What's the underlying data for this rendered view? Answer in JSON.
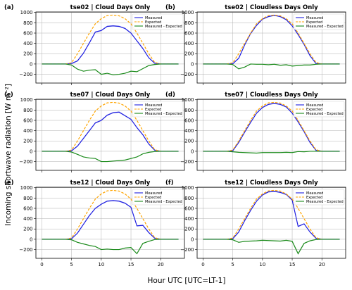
{
  "figure": {
    "ylabel": "Incoming shortwave radiation [W m⁻²]",
    "xlabel": "Hour UTC [UTC=LT-1]",
    "legend_entries": [
      "Measured",
      "Expected",
      "Measured - Expected"
    ],
    "colors": {
      "measured": "#1f1fe0",
      "expected": "#ffa500",
      "difference": "#1a8a1a",
      "band": "#9aa0f0"
    }
  },
  "chart_data": [
    {
      "type": "line",
      "panel": "(a)",
      "title": "tse02 | Cloud Days Only",
      "xlim": [
        -1,
        24
      ],
      "ylim": [
        -370,
        1010
      ],
      "xticks": [
        0,
        5,
        10,
        15,
        20
      ],
      "yticks": [
        -200,
        0,
        200,
        400,
        600,
        800,
        1000
      ],
      "x": [
        0,
        1,
        2,
        3,
        4,
        5,
        6,
        7,
        8,
        9,
        10,
        11,
        12,
        13,
        14,
        15,
        16,
        17,
        18,
        19,
        20,
        21,
        22,
        23
      ],
      "series": [
        {
          "name": "Measured",
          "values": [
            0,
            0,
            0,
            0,
            0,
            10,
            60,
            210,
            410,
            620,
            650,
            730,
            740,
            730,
            690,
            600,
            450,
            300,
            120,
            15,
            0,
            0,
            0,
            0
          ]
        },
        {
          "name": "Expected",
          "values": [
            0,
            0,
            0,
            0,
            0,
            25,
            200,
            400,
            600,
            780,
            880,
            940,
            950,
            935,
            880,
            780,
            600,
            400,
            200,
            30,
            0,
            0,
            0,
            0
          ]
        },
        {
          "name": "Measured - Expected",
          "values": [
            0,
            0,
            0,
            0,
            0,
            -20,
            -100,
            -140,
            -120,
            -110,
            -200,
            -180,
            -210,
            -200,
            -180,
            -140,
            -150,
            -90,
            -30,
            -10,
            0,
            0,
            0,
            0
          ]
        }
      ]
    },
    {
      "type": "line",
      "panel": "(b)",
      "title": "tse02 | Cloudless Days Only",
      "xlim": [
        -1,
        24
      ],
      "ylim": [
        -370,
        1010
      ],
      "xticks": [
        0,
        5,
        10,
        15,
        20
      ],
      "yticks": [
        -200,
        0,
        200,
        400,
        600,
        800,
        1000
      ],
      "x": [
        0,
        1,
        2,
        3,
        4,
        5,
        6,
        7,
        8,
        9,
        10,
        11,
        12,
        13,
        14,
        15,
        16,
        17,
        18,
        19,
        20,
        21,
        22,
        23
      ],
      "series": [
        {
          "name": "Measured",
          "values": [
            0,
            0,
            0,
            0,
            0,
            5,
            110,
            370,
            590,
            750,
            870,
            920,
            945,
            920,
            860,
            740,
            570,
            380,
            160,
            10,
            0,
            0,
            0,
            0
          ]
        },
        {
          "name": "Expected",
          "values": [
            0,
            0,
            0,
            0,
            0,
            25,
            200,
            400,
            600,
            780,
            880,
            940,
            950,
            935,
            880,
            780,
            600,
            400,
            200,
            30,
            0,
            0,
            0,
            0
          ]
        },
        {
          "name": "Measured - Expected",
          "values": [
            0,
            0,
            0,
            0,
            0,
            -10,
            -95,
            -60,
            0,
            -5,
            -5,
            -15,
            -5,
            -25,
            -15,
            -40,
            -30,
            -20,
            -20,
            -5,
            0,
            0,
            0,
            0
          ]
        }
      ]
    },
    {
      "type": "line",
      "panel": "(c)",
      "title": "tse07 | Cloud Days Only",
      "xlim": [
        -1,
        24
      ],
      "ylim": [
        -370,
        1010
      ],
      "xticks": [
        0,
        5,
        10,
        15,
        20
      ],
      "yticks": [
        -200,
        0,
        200,
        400,
        600,
        800,
        1000
      ],
      "x": [
        0,
        1,
        2,
        3,
        4,
        5,
        6,
        7,
        8,
        9,
        10,
        11,
        12,
        13,
        14,
        15,
        16,
        17,
        18,
        19,
        20,
        21,
        22,
        23
      ],
      "series": [
        {
          "name": "Measured",
          "values": [
            0,
            0,
            0,
            0,
            0,
            10,
            100,
            250,
            400,
            550,
            600,
            700,
            750,
            760,
            690,
            620,
            460,
            320,
            140,
            20,
            0,
            0,
            0,
            0
          ]
        },
        {
          "name": "Expected",
          "values": [
            0,
            0,
            0,
            0,
            0,
            25,
            200,
            400,
            600,
            780,
            880,
            940,
            950,
            935,
            880,
            780,
            600,
            400,
            200,
            30,
            0,
            0,
            0,
            0
          ]
        },
        {
          "name": "Measured - Expected",
          "values": [
            0,
            0,
            0,
            0,
            0,
            -15,
            -60,
            -110,
            -130,
            -140,
            -200,
            -200,
            -190,
            -180,
            -170,
            -140,
            -110,
            -50,
            -20,
            -5,
            0,
            0,
            0,
            0
          ]
        }
      ]
    },
    {
      "type": "line",
      "panel": "(d)",
      "title": "tse07 | Cloudless Days Only",
      "xlim": [
        -1,
        24
      ],
      "ylim": [
        -370,
        1010
      ],
      "xticks": [
        0,
        5,
        10,
        15,
        20
      ],
      "yticks": [
        -200,
        0,
        200,
        400,
        600,
        800,
        1000
      ],
      "x": [
        0,
        1,
        2,
        3,
        4,
        5,
        6,
        7,
        8,
        9,
        10,
        11,
        12,
        13,
        14,
        15,
        16,
        17,
        18,
        19,
        20,
        21,
        22,
        23
      ],
      "series": [
        {
          "name": "Measured",
          "values": [
            0,
            0,
            0,
            0,
            0,
            10,
            170,
            370,
            560,
            740,
            850,
            910,
            930,
            910,
            860,
            740,
            570,
            380,
            170,
            20,
            0,
            0,
            0,
            0
          ]
        },
        {
          "name": "Expected",
          "values": [
            0,
            0,
            0,
            0,
            0,
            25,
            200,
            400,
            600,
            780,
            880,
            940,
            950,
            935,
            880,
            780,
            600,
            400,
            200,
            30,
            0,
            0,
            0,
            0
          ]
        },
        {
          "name": "Measured - Expected",
          "values": [
            0,
            0,
            0,
            0,
            0,
            -10,
            -20,
            -25,
            -30,
            -35,
            -25,
            -25,
            -25,
            -25,
            -20,
            -25,
            -5,
            -10,
            0,
            0,
            0,
            0,
            0,
            0
          ]
        }
      ]
    },
    {
      "type": "line",
      "panel": "(e)",
      "title": "tse12 | Cloud Days Only",
      "xlim": [
        -1,
        24
      ],
      "ylim": [
        -370,
        1010
      ],
      "xticks": [
        0,
        5,
        10,
        15,
        20
      ],
      "yticks": [
        -200,
        0,
        200,
        400,
        600,
        800,
        1000
      ],
      "x": [
        0,
        1,
        2,
        3,
        4,
        5,
        6,
        7,
        8,
        9,
        10,
        11,
        12,
        13,
        14,
        15,
        16,
        17,
        18,
        19,
        20,
        21,
        22,
        23
      ],
      "series": [
        {
          "name": "Measured",
          "values": [
            0,
            0,
            0,
            0,
            0,
            10,
            120,
            290,
            460,
            600,
            680,
            740,
            750,
            740,
            700,
            620,
            260,
            270,
            130,
            20,
            0,
            0,
            0,
            0
          ]
        },
        {
          "name": "Expected",
          "values": [
            0,
            0,
            0,
            0,
            0,
            25,
            200,
            400,
            600,
            780,
            880,
            940,
            950,
            935,
            880,
            780,
            600,
            400,
            200,
            30,
            0,
            0,
            0,
            0
          ]
        },
        {
          "name": "Measured - Expected",
          "values": [
            0,
            0,
            0,
            0,
            0,
            -10,
            -60,
            -90,
            -120,
            -140,
            -200,
            -190,
            -200,
            -200,
            -170,
            -160,
            -280,
            -80,
            -40,
            -5,
            0,
            0,
            0,
            0
          ]
        }
      ]
    },
    {
      "type": "line",
      "panel": "(f)",
      "title": "tse12 | Cloudless Days Only",
      "xlim": [
        -1,
        24
      ],
      "ylim": [
        -370,
        1010
      ],
      "xticks": [
        0,
        5,
        10,
        15,
        20
      ],
      "yticks": [
        -200,
        0,
        200,
        400,
        600,
        800,
        1000
      ],
      "x": [
        0,
        1,
        2,
        3,
        4,
        5,
        6,
        7,
        8,
        9,
        10,
        11,
        12,
        13,
        14,
        15,
        16,
        17,
        18,
        19,
        20,
        21,
        22,
        23
      ],
      "series": [
        {
          "name": "Measured",
          "values": [
            0,
            0,
            0,
            0,
            0,
            10,
            140,
            360,
            560,
            740,
            860,
            920,
            930,
            910,
            870,
            760,
            250,
            300,
            140,
            20,
            0,
            0,
            0,
            0
          ]
        },
        {
          "name": "Expected",
          "values": [
            0,
            0,
            0,
            0,
            0,
            25,
            200,
            400,
            600,
            780,
            880,
            940,
            950,
            935,
            880,
            780,
            600,
            400,
            200,
            30,
            0,
            0,
            0,
            0
          ]
        },
        {
          "name": "Measured - Expected",
          "values": [
            0,
            0,
            0,
            0,
            0,
            -10,
            -60,
            -40,
            -35,
            -30,
            -20,
            -25,
            -30,
            -35,
            -20,
            -40,
            -280,
            -80,
            -30,
            -5,
            0,
            0,
            0,
            0
          ]
        }
      ]
    }
  ]
}
